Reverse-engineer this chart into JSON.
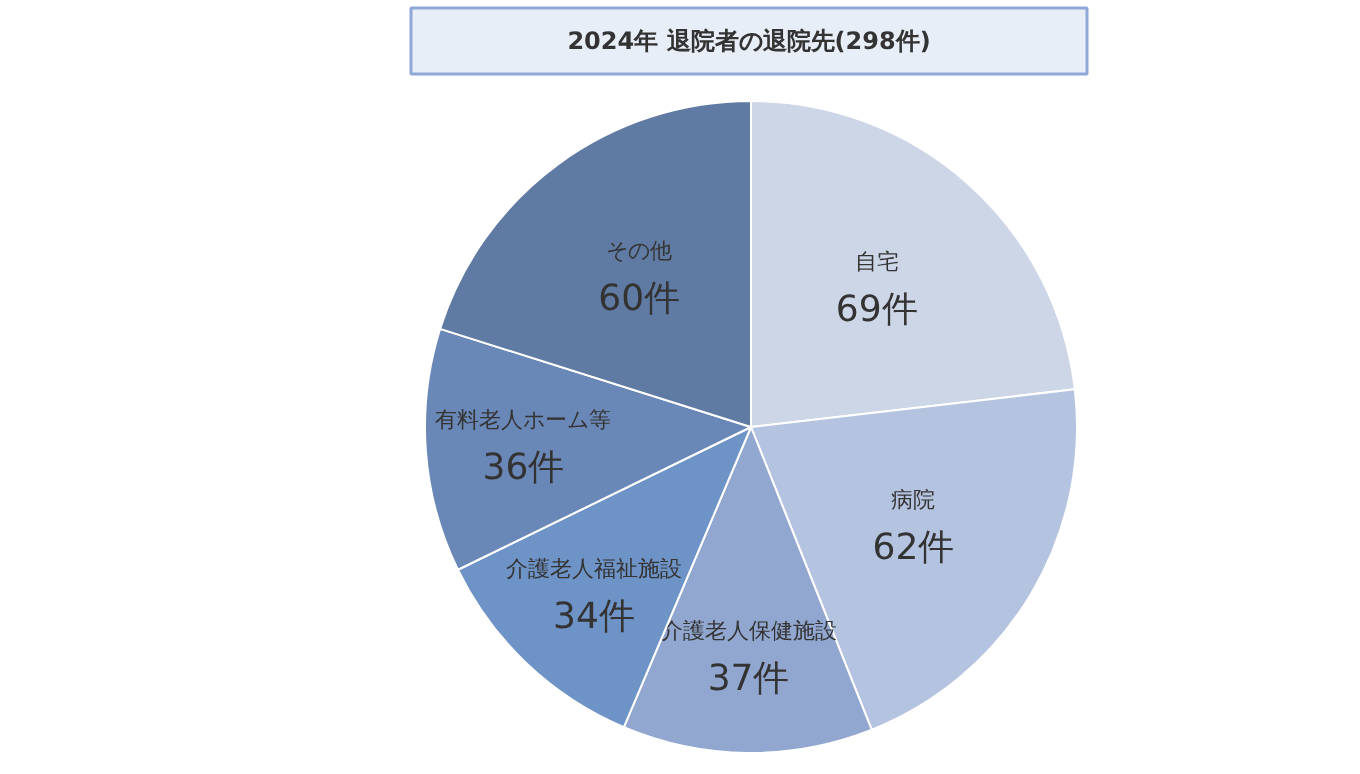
{
  "chart_data": {
    "type": "pie",
    "title": "2024年 退院者の退院先(298件)",
    "categories": [
      "自宅",
      "病院",
      "介護老人保健施設",
      "介護老人福祉施設",
      "有料老人ホーム等",
      "その他"
    ],
    "values": [
      69,
      62,
      37,
      34,
      36,
      60
    ],
    "colors": [
      "#cdd6e7",
      "#b4c3df",
      "#91a7d0",
      "#6e93c6",
      "#6a88b7",
      "#5f7ba3"
    ],
    "value_labels": [
      "69件",
      "62件",
      "37件",
      "34件",
      "36件",
      "60件"
    ]
  }
}
